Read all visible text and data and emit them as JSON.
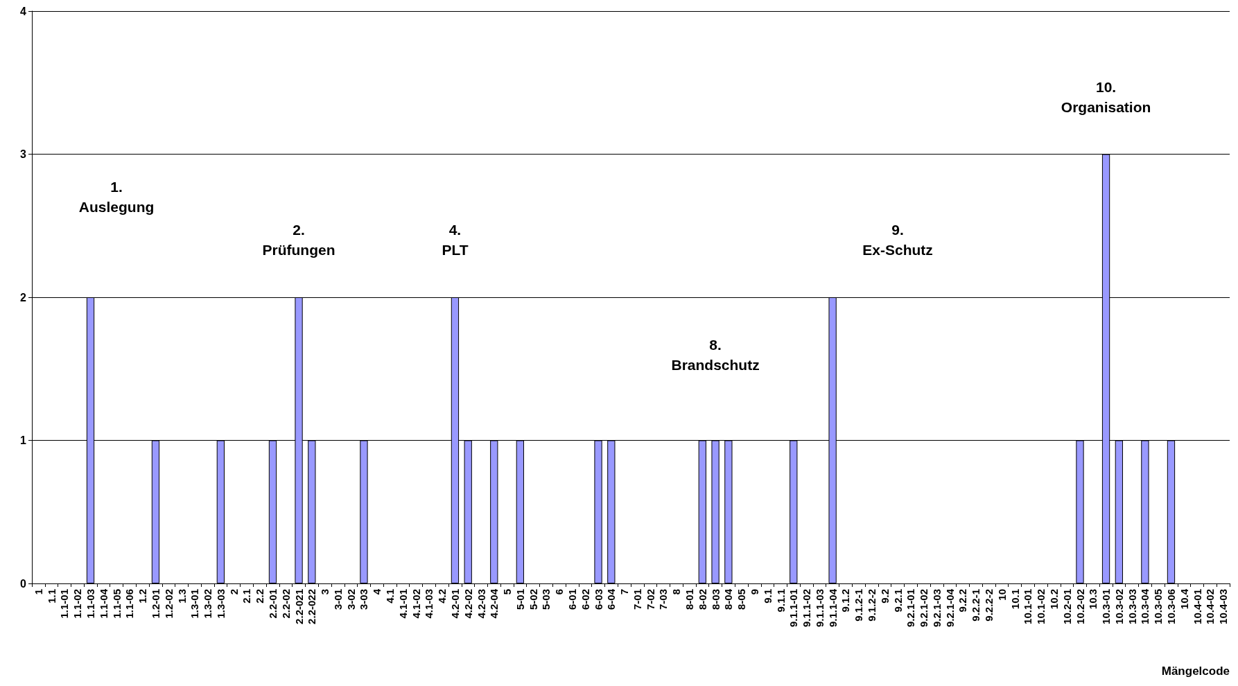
{
  "chart_data": {
    "type": "bar",
    "xlabel": "Mängelcode",
    "categories": [
      "1",
      "1.1",
      "1.1-01",
      "1.1-02",
      "1.1-03",
      "1.1-04",
      "1.1-05",
      "1.1-06",
      "1.2",
      "1.2-01",
      "1.2-02",
      "1.3",
      "1.3-01",
      "1.3-02",
      "1.3-03",
      "2",
      "2.1",
      "2.2",
      "2.2-01",
      "2.2-02",
      "2.2-021",
      "2.2-022",
      "3",
      "3-01",
      "3-02",
      "3-03",
      "4",
      "4.1",
      "4.1-01",
      "4.1-02",
      "4.1-03",
      "4.2",
      "4.2-01",
      "4.2-02",
      "4.2-03",
      "4.2-04",
      "5",
      "5-01",
      "5-02",
      "5-03",
      "6",
      "6-01",
      "6-02",
      "6-03",
      "6-04",
      "7",
      "7-01",
      "7-02",
      "7-03",
      "8",
      "8-01",
      "8-02",
      "8-03",
      "8-04",
      "8-05",
      "9",
      "9.1",
      "9.1.1",
      "9.1.1-01",
      "9.1.1-02",
      "9.1.1-03",
      "9.1.1-04",
      "9.1.2",
      "9.1.2-1",
      "9.1.2-2",
      "9.2",
      "9.2.1",
      "9.2.1-01",
      "9.2.1-02",
      "9.2.1-03",
      "9.2.1-04",
      "9.2.2",
      "9.2.2-1",
      "9.2.2-2",
      "10",
      "10.1",
      "10.1-01",
      "10.1-02",
      "10.2",
      "10.2-01",
      "10.2-02",
      "10.3",
      "10.3-01",
      "10.3-02",
      "10.3-03",
      "10.3-04",
      "10.3-05",
      "10.3-06",
      "10.4",
      "10.4-01",
      "10.4-02",
      "10.4-03"
    ],
    "values": [
      0,
      0,
      0,
      0,
      2,
      0,
      0,
      0,
      0,
      1,
      0,
      0,
      0,
      0,
      1,
      0,
      0,
      0,
      1,
      0,
      2,
      1,
      0,
      0,
      0,
      1,
      0,
      0,
      0,
      0,
      0,
      0,
      2,
      1,
      0,
      1,
      0,
      1,
      0,
      0,
      0,
      0,
      0,
      1,
      1,
      0,
      0,
      0,
      0,
      0,
      0,
      1,
      1,
      1,
      0,
      0,
      0,
      0,
      1,
      0,
      0,
      2,
      0,
      0,
      0,
      0,
      0,
      0,
      0,
      0,
      0,
      0,
      0,
      0,
      0,
      0,
      0,
      0,
      0,
      0,
      1,
      0,
      3,
      1,
      0,
      1,
      0,
      1,
      0,
      0,
      0,
      0
    ],
    "color": "#9999ff",
    "ylim": [
      0,
      4
    ],
    "yticks": [
      0,
      1,
      2,
      3,
      4
    ],
    "grid": "y",
    "annotations": [
      "1.\nAuslegung",
      "2.\nPrüfungen",
      "4.\nPLT",
      "8.\nBrandschutz",
      "9.\nEx-Schutz",
      "10.\nOrganisation"
    ]
  }
}
